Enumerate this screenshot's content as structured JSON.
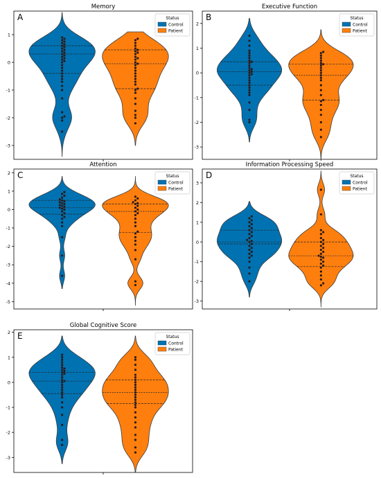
{
  "colors": {
    "control": "#0072b2",
    "patient": "#ff7f0e",
    "dot": "#2b1a1a",
    "edge": "#3a3a3a"
  },
  "legend": {
    "title": "Status",
    "entries": [
      "Control",
      "Patient"
    ]
  },
  "chart_data": [
    {
      "type": "violin",
      "panel_label": "A",
      "title": "Memory",
      "xlabel": "",
      "ylabel": "",
      "ylim": [
        -3.5,
        1.85
      ],
      "yticks": [
        1,
        0,
        -1,
        -2,
        -3
      ],
      "legend_position": "top-right",
      "series": [
        {
          "name": "Control",
          "quartiles": [
            -0.4,
            0.3,
            0.6
          ],
          "range": [
            -3.4,
            1.8
          ],
          "points": [
            0.9,
            0.85,
            0.8,
            0.75,
            0.7,
            0.65,
            0.6,
            0.55,
            0.5,
            0.45,
            0.4,
            0.35,
            0.3,
            0.25,
            0.2,
            0.15,
            0.1,
            0.05,
            0,
            -0.1,
            -0.2,
            -0.3,
            -0.4,
            -0.5,
            -0.6,
            -0.7,
            -0.85,
            -1.0,
            -1.3,
            -1.8,
            -1.95,
            -2.0,
            -2.1,
            -2.5
          ]
        },
        {
          "name": "Patient",
          "quartiles": [
            -0.95,
            -0.05,
            0.45
          ],
          "range": [
            -3.0,
            1.1
          ],
          "points": [
            0.85,
            0.8,
            0.7,
            0.6,
            0.5,
            0.45,
            0.4,
            0.35,
            0.3,
            0.2,
            0.15,
            0.1,
            0.0,
            -0.05,
            -0.1,
            -0.2,
            -0.3,
            -0.4,
            -0.5,
            -0.6,
            -0.7,
            -0.8,
            -0.95,
            -1.0,
            -1.1,
            -1.3,
            -1.5,
            -1.75,
            -1.9,
            -2.0,
            -2.2
          ]
        }
      ]
    },
    {
      "type": "violin",
      "panel_label": "B",
      "title": "Executive Function",
      "xlabel": "",
      "ylabel": "",
      "ylim": [
        -3.5,
        2.5
      ],
      "yticks": [
        2,
        1,
        0,
        -1,
        -2,
        -3
      ],
      "legend_position": "top-right",
      "series": [
        {
          "name": "Control",
          "quartiles": [
            -0.5,
            0.05,
            0.45
          ],
          "range": [
            -2.8,
            2.2
          ],
          "points": [
            1.5,
            1.3,
            1.1,
            0.9,
            0.8,
            0.7,
            0.6,
            0.5,
            0.45,
            0.4,
            0.3,
            0.2,
            0.15,
            0.1,
            0.05,
            0,
            -0.05,
            -0.1,
            -0.2,
            -0.3,
            -0.4,
            -0.5,
            -0.6,
            -0.7,
            -0.8,
            -0.9,
            -1.2,
            -1.5,
            -1.9,
            -2.0
          ]
        },
        {
          "name": "Patient",
          "quartiles": [
            -1.1,
            -0.1,
            0.35
          ],
          "range": [
            -3.55,
            1.75
          ],
          "points": [
            0.85,
            0.8,
            0.7,
            0.6,
            0.5,
            0.4,
            0.35,
            0.3,
            0.2,
            0.1,
            0.0,
            -0.1,
            -0.2,
            -0.3,
            -0.5,
            -0.7,
            -0.9,
            -1.1,
            -1.15,
            -1.3,
            -1.5,
            -1.7,
            -2.0,
            -2.3,
            -2.6
          ]
        }
      ]
    },
    {
      "type": "violin",
      "panel_label": "C",
      "title": "Attention",
      "xlabel": "",
      "ylabel": "",
      "ylim": [
        -5.4,
        2.2
      ],
      "yticks": [
        2,
        1,
        0,
        -1,
        -2,
        -3,
        -4,
        -5
      ],
      "legend_position": "top-right",
      "series": [
        {
          "name": "Control",
          "quartiles": [
            -0.25,
            0.1,
            0.5
          ],
          "range": [
            -4.3,
            1.8
          ],
          "points": [
            0.95,
            0.85,
            0.75,
            0.65,
            0.55,
            0.5,
            0.45,
            0.4,
            0.35,
            0.3,
            0.25,
            0.2,
            0.15,
            0.1,
            0.05,
            0,
            -0.1,
            -0.2,
            -0.3,
            -0.4,
            -0.5,
            -0.7,
            -0.9,
            -1.5,
            -2.5,
            -3.6
          ]
        },
        {
          "name": "Patient",
          "quartiles": [
            -1.25,
            -0.1,
            0.3
          ],
          "range": [
            -5.2,
            1.8
          ],
          "points": [
            0.7,
            0.6,
            0.5,
            0.4,
            0.35,
            0.3,
            0.2,
            0.1,
            0.0,
            -0.1,
            -0.2,
            -0.3,
            -0.5,
            -0.7,
            -0.9,
            -1.2,
            -1.3,
            -1.5,
            -1.7,
            -1.9,
            -2.2,
            -2.7,
            -3.9,
            -4.1
          ]
        }
      ]
    },
    {
      "type": "violin",
      "panel_label": "D",
      "title": "Information Processing Speed",
      "xlabel": "",
      "ylabel": "",
      "ylim": [
        -3.4,
        3.7
      ],
      "yticks": [
        3,
        2,
        1,
        0,
        -1,
        -2,
        -3
      ],
      "legend_position": "top-right",
      "series": [
        {
          "name": "Control",
          "quartiles": [
            -0.1,
            0.0,
            0.6
          ],
          "range": [
            -2.8,
            2.05
          ],
          "points": [
            1.3,
            1.2,
            1.1,
            1.0,
            0.9,
            0.8,
            0.7,
            0.6,
            0.5,
            0.4,
            0.3,
            0.2,
            0.1,
            0.05,
            0,
            -0.1,
            -0.2,
            -0.3,
            -0.4,
            -0.5,
            -0.6,
            -0.7,
            -0.8,
            -1.0,
            -1.3,
            -1.6,
            -2.0
          ]
        },
        {
          "name": "Patient",
          "quartiles": [
            -1.25,
            -0.7,
            0.0
          ],
          "range": [
            -3.3,
            3.6
          ],
          "points": [
            2.65,
            1.4,
            0.6,
            0.5,
            0.4,
            0.2,
            0.1,
            0,
            -0.1,
            -0.2,
            -0.3,
            -0.4,
            -0.5,
            -0.6,
            -0.7,
            -0.75,
            -0.8,
            -0.9,
            -1.0,
            -1.1,
            -1.2,
            -1.3,
            -1.5,
            -1.7,
            -1.9,
            -2.1,
            -2.2
          ]
        }
      ]
    },
    {
      "type": "violin",
      "panel_label": "E",
      "title": "Global Cognitive Score",
      "xlabel": "",
      "ylabel": "",
      "ylim": [
        -3.6,
        2.1
      ],
      "yticks": [
        2,
        1,
        0,
        -1,
        -2,
        -3
      ],
      "legend_position": "top-right",
      "series": [
        {
          "name": "Control",
          "quartiles": [
            -0.45,
            0.05,
            0.4
          ],
          "range": [
            -3.25,
            1.85
          ],
          "points": [
            1.1,
            1.0,
            0.9,
            0.8,
            0.7,
            0.6,
            0.55,
            0.5,
            0.45,
            0.4,
            0.35,
            0.3,
            0.2,
            0.1,
            0.05,
            0,
            -0.1,
            -0.2,
            -0.3,
            -0.4,
            -0.5,
            -0.6,
            -0.8,
            -1.0,
            -1.3,
            -1.7,
            -2.3,
            -2.5
          ]
        },
        {
          "name": "Patient",
          "quartiles": [
            -0.85,
            -0.4,
            0.1
          ],
          "range": [
            -3.6,
            1.85
          ],
          "points": [
            1.0,
            0.9,
            0.7,
            0.5,
            0.3,
            0.2,
            0.1,
            0.0,
            -0.1,
            -0.2,
            -0.3,
            -0.4,
            -0.5,
            -0.6,
            -0.7,
            -0.8,
            -0.9,
            -1.0,
            -1.2,
            -1.4,
            -1.6,
            -1.8,
            -2.1,
            -2.3,
            -2.6,
            -2.8
          ]
        }
      ]
    }
  ]
}
